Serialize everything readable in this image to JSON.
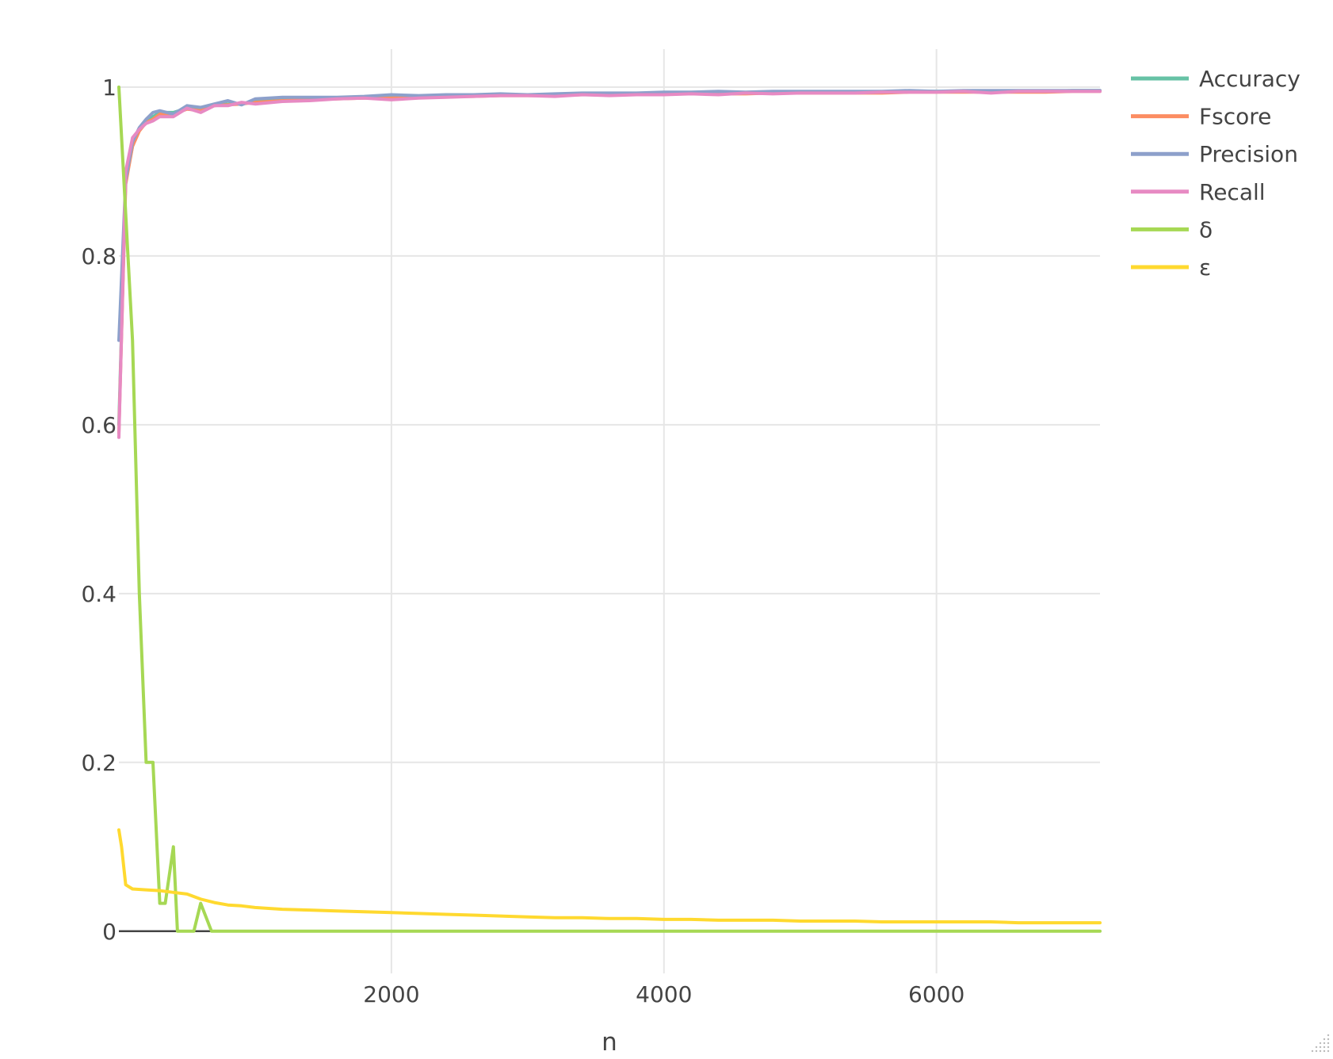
{
  "chart_data": {
    "type": "line",
    "title": "",
    "xlabel": "n",
    "ylabel": "",
    "xlim": [
      0,
      7200
    ],
    "ylim": [
      -0.05,
      1.045
    ],
    "x_ticks": [
      2000,
      4000,
      6000
    ],
    "x_tick_labels": [
      "2000",
      "4000",
      "6000"
    ],
    "y_ticks": [
      0,
      0.2,
      0.4,
      0.6,
      0.8,
      1
    ],
    "y_tick_labels": [
      "0",
      "0.2",
      "0.4",
      "0.6",
      "0.8",
      "1"
    ],
    "grid": true,
    "legend_position": "top-right",
    "series": [
      {
        "name": "Accuracy",
        "color": "#66c2a5",
        "x": [
          0,
          50,
          100,
          150,
          200,
          250,
          300,
          400,
          500,
          600,
          700,
          800,
          900,
          1000,
          1200,
          1400,
          1600,
          1800,
          2000,
          2200,
          2400,
          2600,
          2800,
          3000,
          3200,
          3400,
          3600,
          3800,
          4000,
          4200,
          4400,
          4600,
          4800,
          5000,
          5200,
          5400,
          5600,
          5800,
          6000,
          6200,
          6400,
          6600,
          6800,
          7000,
          7200
        ],
        "values": [
          0.6,
          0.89,
          0.93,
          0.95,
          0.96,
          0.965,
          0.97,
          0.97,
          0.975,
          0.975,
          0.978,
          0.98,
          0.98,
          0.983,
          0.985,
          0.986,
          0.987,
          0.988,
          0.988,
          0.989,
          0.99,
          0.99,
          0.991,
          0.991,
          0.991,
          0.992,
          0.992,
          0.992,
          0.993,
          0.993,
          0.993,
          0.993,
          0.994,
          0.994,
          0.994,
          0.994,
          0.994,
          0.995,
          0.995,
          0.995,
          0.995,
          0.995,
          0.995,
          0.996,
          0.996
        ]
      },
      {
        "name": "Fscore",
        "color": "#fc8d62",
        "x": [
          0,
          50,
          100,
          150,
          200,
          250,
          300,
          400,
          500,
          600,
          700,
          800,
          900,
          1000,
          1200,
          1400,
          1600,
          1800,
          2000,
          2200,
          2400,
          2600,
          2800,
          3000,
          3200,
          3400,
          3600,
          3800,
          4000,
          4200,
          4400,
          4600,
          4800,
          5000,
          5200,
          5400,
          5600,
          5800,
          6000,
          6200,
          6400,
          6600,
          6800,
          7000,
          7200
        ],
        "values": [
          0.59,
          0.885,
          0.93,
          0.948,
          0.958,
          0.962,
          0.968,
          0.968,
          0.974,
          0.972,
          0.978,
          0.979,
          0.98,
          0.982,
          0.984,
          0.985,
          0.986,
          0.987,
          0.987,
          0.988,
          0.989,
          0.989,
          0.99,
          0.99,
          0.99,
          0.991,
          0.991,
          0.991,
          0.992,
          0.992,
          0.992,
          0.992,
          0.993,
          0.993,
          0.993,
          0.993,
          0.993,
          0.994,
          0.994,
          0.994,
          0.994,
          0.994,
          0.994,
          0.995,
          0.995
        ]
      },
      {
        "name": "Precision",
        "color": "#8da0cb",
        "x": [
          0,
          50,
          100,
          150,
          200,
          250,
          300,
          400,
          500,
          600,
          700,
          800,
          900,
          1000,
          1200,
          1400,
          1600,
          1800,
          2000,
          2200,
          2400,
          2600,
          2800,
          3000,
          3200,
          3400,
          3600,
          3800,
          4000,
          4200,
          4400,
          4600,
          4800,
          5000,
          5200,
          5400,
          5600,
          5800,
          6000,
          6200,
          6400,
          6600,
          6800,
          7000,
          7200
        ],
        "values": [
          0.7,
          0.89,
          0.935,
          0.952,
          0.962,
          0.97,
          0.972,
          0.968,
          0.978,
          0.976,
          0.98,
          0.984,
          0.979,
          0.986,
          0.988,
          0.988,
          0.988,
          0.989,
          0.991,
          0.99,
          0.991,
          0.991,
          0.992,
          0.991,
          0.992,
          0.993,
          0.993,
          0.993,
          0.994,
          0.994,
          0.995,
          0.994,
          0.995,
          0.995,
          0.995,
          0.995,
          0.995,
          0.996,
          0.995,
          0.996,
          0.996,
          0.996,
          0.996,
          0.996,
          0.996
        ]
      },
      {
        "name": "Recall",
        "color": "#e78ac3",
        "x": [
          0,
          50,
          100,
          150,
          200,
          250,
          300,
          400,
          500,
          600,
          700,
          800,
          900,
          1000,
          1200,
          1400,
          1600,
          1800,
          2000,
          2200,
          2400,
          2600,
          2800,
          3000,
          3200,
          3400,
          3600,
          3800,
          4000,
          4200,
          4400,
          4600,
          4800,
          5000,
          5200,
          5400,
          5600,
          5800,
          6000,
          6200,
          6400,
          6600,
          6800,
          7000,
          7200
        ],
        "values": [
          0.585,
          0.9,
          0.94,
          0.95,
          0.957,
          0.96,
          0.965,
          0.965,
          0.975,
          0.97,
          0.978,
          0.978,
          0.982,
          0.98,
          0.983,
          0.984,
          0.986,
          0.987,
          0.985,
          0.987,
          0.988,
          0.989,
          0.99,
          0.99,
          0.989,
          0.991,
          0.99,
          0.991,
          0.991,
          0.992,
          0.991,
          0.993,
          0.992,
          0.993,
          0.993,
          0.993,
          0.994,
          0.994,
          0.994,
          0.995,
          0.993,
          0.995,
          0.995,
          0.995,
          0.995
        ]
      },
      {
        "name": "δ",
        "color": "#a6d854",
        "x": [
          0,
          100,
          150,
          200,
          250,
          300,
          340,
          400,
          430,
          550,
          600,
          680,
          700,
          7200
        ],
        "values": [
          1.0,
          0.7,
          0.4,
          0.2,
          0.2,
          0.033,
          0.033,
          0.1,
          0.0,
          0.0,
          0.033,
          0.0,
          0.0,
          0.0
        ]
      },
      {
        "name": "ε",
        "color": "#ffd92f",
        "x": [
          0,
          20,
          50,
          100,
          200,
          300,
          400,
          500,
          600,
          700,
          800,
          900,
          1000,
          1200,
          1400,
          1600,
          1800,
          2000,
          2200,
          2400,
          2600,
          2800,
          3000,
          3200,
          3400,
          3600,
          3800,
          4000,
          4200,
          4400,
          4600,
          4800,
          5000,
          5200,
          5400,
          5600,
          5800,
          6000,
          6200,
          6400,
          6600,
          6800,
          7000,
          7200
        ],
        "values": [
          0.12,
          0.1,
          0.055,
          0.05,
          0.049,
          0.048,
          0.046,
          0.044,
          0.038,
          0.034,
          0.031,
          0.03,
          0.028,
          0.026,
          0.025,
          0.024,
          0.023,
          0.022,
          0.021,
          0.02,
          0.019,
          0.018,
          0.017,
          0.016,
          0.016,
          0.015,
          0.015,
          0.014,
          0.014,
          0.013,
          0.013,
          0.013,
          0.012,
          0.012,
          0.012,
          0.011,
          0.011,
          0.011,
          0.011,
          0.011,
          0.01,
          0.01,
          0.01,
          0.01
        ]
      }
    ]
  }
}
